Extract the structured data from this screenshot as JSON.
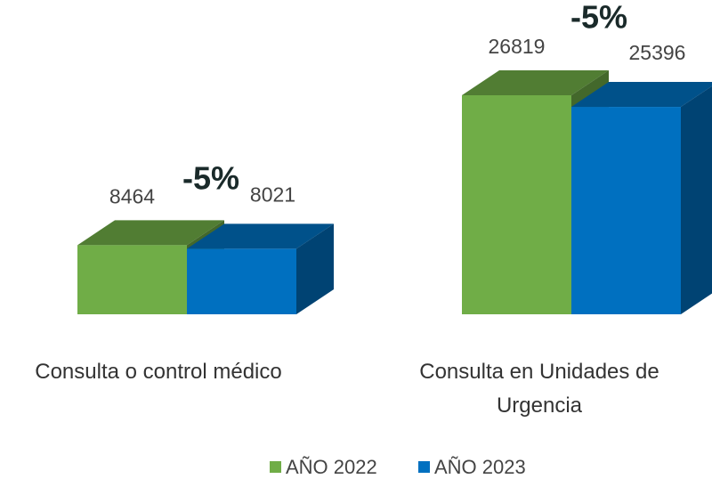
{
  "chart_data": {
    "type": "bar",
    "categories": [
      "Consulta o control médico",
      "Consulta en Unidades de Urgencia"
    ],
    "series": [
      {
        "name": "AÑO 2022",
        "color": "#70ad47",
        "values": [
          8464,
          26819
        ]
      },
      {
        "name": "AÑO 2023",
        "color": "#0070c0",
        "values": [
          8021,
          25396
        ]
      }
    ],
    "annotations": [
      "-5%",
      "-5%"
    ]
  }
}
